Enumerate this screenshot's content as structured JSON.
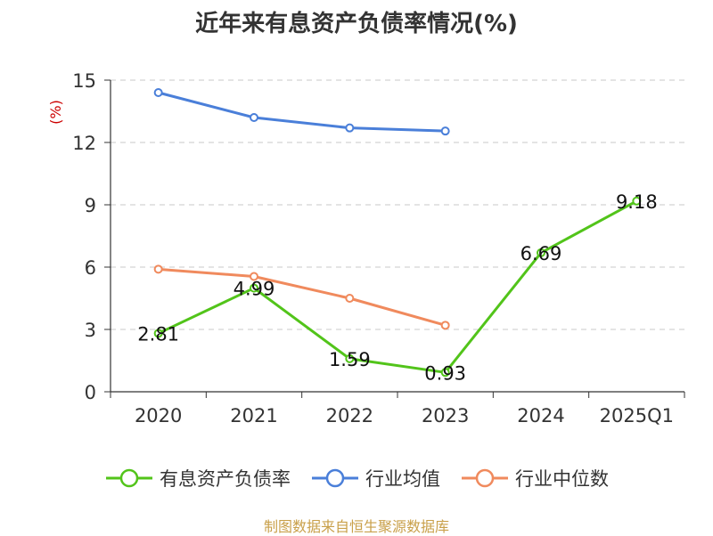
{
  "chart_data": {
    "type": "line",
    "title": "近年来有息资产负债率情况(%)",
    "ylabel": "(%)",
    "xlabel": "",
    "categories": [
      "2020",
      "2021",
      "2022",
      "2023",
      "2024",
      "2025Q1"
    ],
    "ylim": [
      0,
      15
    ],
    "yticks": [
      0,
      3,
      6,
      9,
      12,
      15
    ],
    "grid": true,
    "legend_position": "bottom",
    "series": [
      {
        "name": "有息资产负债率",
        "color": "#52c41a",
        "values": [
          2.81,
          4.99,
          1.59,
          0.93,
          6.69,
          9.18
        ],
        "show_labels": true
      },
      {
        "name": "行业均值",
        "color": "#4a7fd9",
        "values": [
          14.4,
          13.2,
          12.7,
          12.55,
          null,
          null
        ],
        "show_labels": false
      },
      {
        "name": "行业中位数",
        "color": "#f08a5d",
        "values": [
          5.9,
          5.55,
          4.5,
          3.2,
          null,
          null
        ],
        "show_labels": false
      }
    ]
  },
  "source_note": "制图数据来自恒生聚源数据库"
}
